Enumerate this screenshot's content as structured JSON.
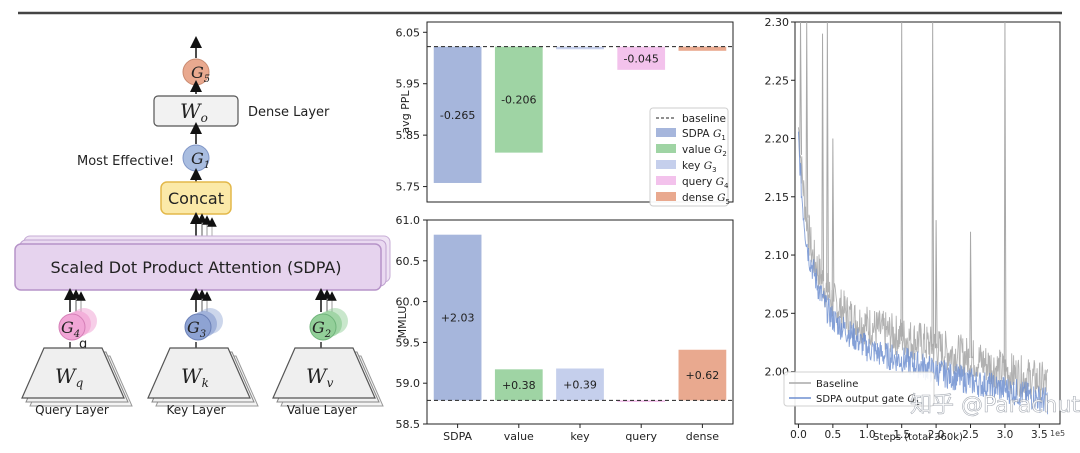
{
  "diagram": {
    "output_gate": "G",
    "output_gate_sub": "5",
    "wo_label": "W",
    "wo_sub": "o",
    "dense_layer": "Dense Layer",
    "most_effective": "Most Effective!",
    "g1": "G",
    "g1_sub": "1",
    "concat": "Concat",
    "sdpa": "Scaled Dot Product Attention (SDPA)",
    "g4": "G",
    "g4_sub": "4",
    "g3": "G",
    "g3_sub": "3",
    "g2": "G",
    "g2_sub": "2",
    "stray_g": "g",
    "wq": "W",
    "wq_sub": "q",
    "wk": "W",
    "wk_sub": "k",
    "wv": "W",
    "wv_sub": "v",
    "query_layer": "Query Layer",
    "key_layer": "Key Layer",
    "value_layer": "Value Layer",
    "colors": {
      "g5": "#e9a98f",
      "g1": "#a9bde0",
      "g4": "#f1a6d6",
      "g3": "#8ea3d3",
      "g2": "#93cf99",
      "concat_fill": "#fbe9a8",
      "concat_stroke": "#e3b84a",
      "sdpa_fill": "#e6d3ee",
      "sdpa_stroke": "#b693c8"
    }
  },
  "chart_data": [
    {
      "type": "bar",
      "ylabel": "avg PPL",
      "ylim": [
        5.72,
        6.07
      ],
      "yticks": [
        "5.75",
        "5.85",
        "5.95",
        "6.05"
      ],
      "ytick_values": [
        5.75,
        5.85,
        5.95,
        6.05
      ],
      "baseline": 6.022,
      "categories": [
        "SDPA",
        "value",
        "key",
        "query",
        "dense"
      ],
      "values": [
        -0.265,
        -0.206,
        -0.005,
        -0.045,
        -0.008
      ],
      "labels": [
        "-0.265",
        "-0.206",
        "",
        "-0.045",
        ""
      ],
      "colors": [
        "#a6b6dc",
        "#9fd4a4",
        "#c5cfec",
        "#f3c2ec",
        "#e9a98f"
      ],
      "legend": {
        "baseline": "baseline",
        "items": [
          {
            "text": "SDPA ",
            "sub": "1"
          },
          {
            "text": "value ",
            "sub": "2"
          },
          {
            "text": "key ",
            "sub": "3"
          },
          {
            "text": "query ",
            "sub": "4"
          },
          {
            "text": "dense ",
            "sub": "5"
          }
        ]
      }
    },
    {
      "type": "bar",
      "ylabel": "MMLU",
      "ylim": [
        58.5,
        61.0
      ],
      "yticks": [
        "58.5",
        "59.0",
        "59.5",
        "60.0",
        "60.5",
        "61.0"
      ],
      "ytick_values": [
        58.5,
        59.0,
        59.5,
        60.0,
        60.5,
        61.0
      ],
      "baseline": 58.79,
      "categories": [
        "SDPA",
        "value",
        "key",
        "query",
        "dense"
      ],
      "values": [
        2.03,
        0.38,
        0.39,
        -0.02,
        0.62
      ],
      "labels": [
        "+2.03",
        "+0.38",
        "+0.39",
        "",
        "+0.62"
      ],
      "colors": [
        "#a6b6dc",
        "#9fd4a4",
        "#c5cfec",
        "#f3c2ec",
        "#e9a98f"
      ]
    },
    {
      "type": "line",
      "xlabel": "Steps (total 360k)",
      "x_multiplier": "1e5",
      "xlim": [
        -0.05,
        3.8
      ],
      "ylim": [
        1.955,
        2.3
      ],
      "xticks": [
        "0.0",
        "0.5",
        "1.0",
        "1.5",
        "2.0",
        "2.5",
        "3.0",
        "3.5"
      ],
      "xtick_values": [
        0.0,
        0.5,
        1.0,
        1.5,
        2.0,
        2.5,
        3.0,
        3.5
      ],
      "yticks": [
        "2.00",
        "2.05",
        "2.10",
        "2.15",
        "2.20",
        "2.25",
        "2.30"
      ],
      "ytick_values": [
        2.0,
        2.05,
        2.1,
        2.15,
        2.2,
        2.25,
        2.3
      ],
      "series": [
        {
          "name": "Baseline",
          "color": "#a9a9a9",
          "x": [
            0.0,
            0.05,
            0.1,
            0.15,
            0.2,
            0.3,
            0.4,
            0.5,
            0.6,
            0.8,
            1.0,
            1.2,
            1.5,
            1.8,
            2.0,
            2.3,
            2.6,
            3.0,
            3.3,
            3.6
          ],
          "y": [
            2.21,
            2.17,
            2.14,
            2.12,
            2.1,
            2.085,
            2.07,
            2.06,
            2.055,
            2.045,
            2.04,
            2.035,
            2.03,
            2.025,
            2.02,
            2.015,
            2.01,
            2.0,
            1.995,
            1.99
          ],
          "spikes_x": [
            0.03,
            0.12,
            0.35,
            0.42,
            0.5,
            1.5,
            1.95,
            2.0,
            2.5,
            3.0
          ],
          "spikes_y": [
            2.3,
            2.3,
            2.29,
            2.3,
            2.2,
            2.3,
            2.3,
            2.13,
            2.12,
            2.3
          ]
        },
        {
          "name": "SDPA output gate ",
          "name_sub": "1",
          "color": "#6f8fd0",
          "x": [
            0.0,
            0.05,
            0.1,
            0.15,
            0.2,
            0.3,
            0.4,
            0.5,
            0.6,
            0.8,
            1.0,
            1.2,
            1.5,
            1.8,
            2.0,
            2.3,
            2.6,
            3.0,
            3.3,
            3.6
          ],
          "y": [
            2.2,
            2.15,
            2.12,
            2.1,
            2.09,
            2.07,
            2.055,
            2.045,
            2.04,
            2.03,
            2.02,
            2.015,
            2.01,
            2.005,
            2.0,
            1.995,
            1.99,
            1.985,
            1.98,
            1.975
          ]
        }
      ]
    }
  ],
  "watermark": "知乎 @Parachutes"
}
